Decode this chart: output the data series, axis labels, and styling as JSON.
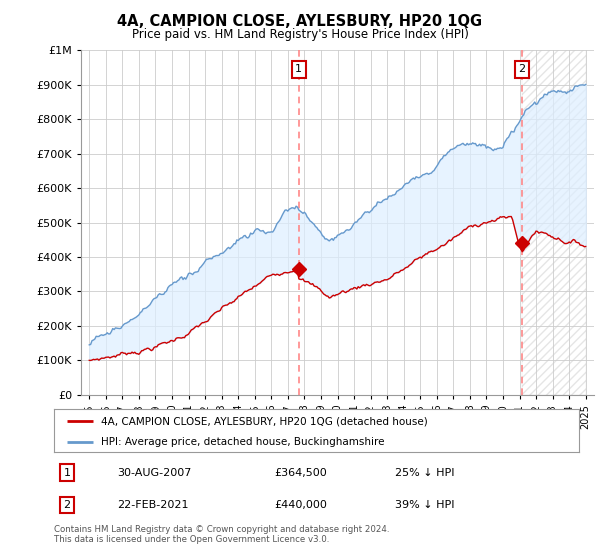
{
  "title": "4A, CAMPION CLOSE, AYLESBURY, HP20 1QG",
  "subtitle": "Price paid vs. HM Land Registry's House Price Index (HPI)",
  "legend_label_red": "4A, CAMPION CLOSE, AYLESBURY, HP20 1QG (detached house)",
  "legend_label_blue": "HPI: Average price, detached house, Buckinghamshire",
  "sale1_date": "30-AUG-2007",
  "sale1_price": "£364,500",
  "sale1_hpi": "25% ↓ HPI",
  "sale1_year": 2007.66,
  "sale1_value": 364500,
  "sale2_date": "22-FEB-2021",
  "sale2_price": "£440,000",
  "sale2_hpi": "39% ↓ HPI",
  "sale2_year": 2021.13,
  "sale2_value": 440000,
  "footnote": "Contains HM Land Registry data © Crown copyright and database right 2024.\nThis data is licensed under the Open Government Licence v3.0.",
  "ylim": [
    0,
    1000000
  ],
  "xlim": [
    1994.5,
    2025.5
  ],
  "red_color": "#cc0000",
  "blue_color": "#6699cc",
  "blue_fill": "#ddeeff",
  "vline_color": "#ff8888",
  "background_color": "#ffffff",
  "grid_color": "#cccccc"
}
